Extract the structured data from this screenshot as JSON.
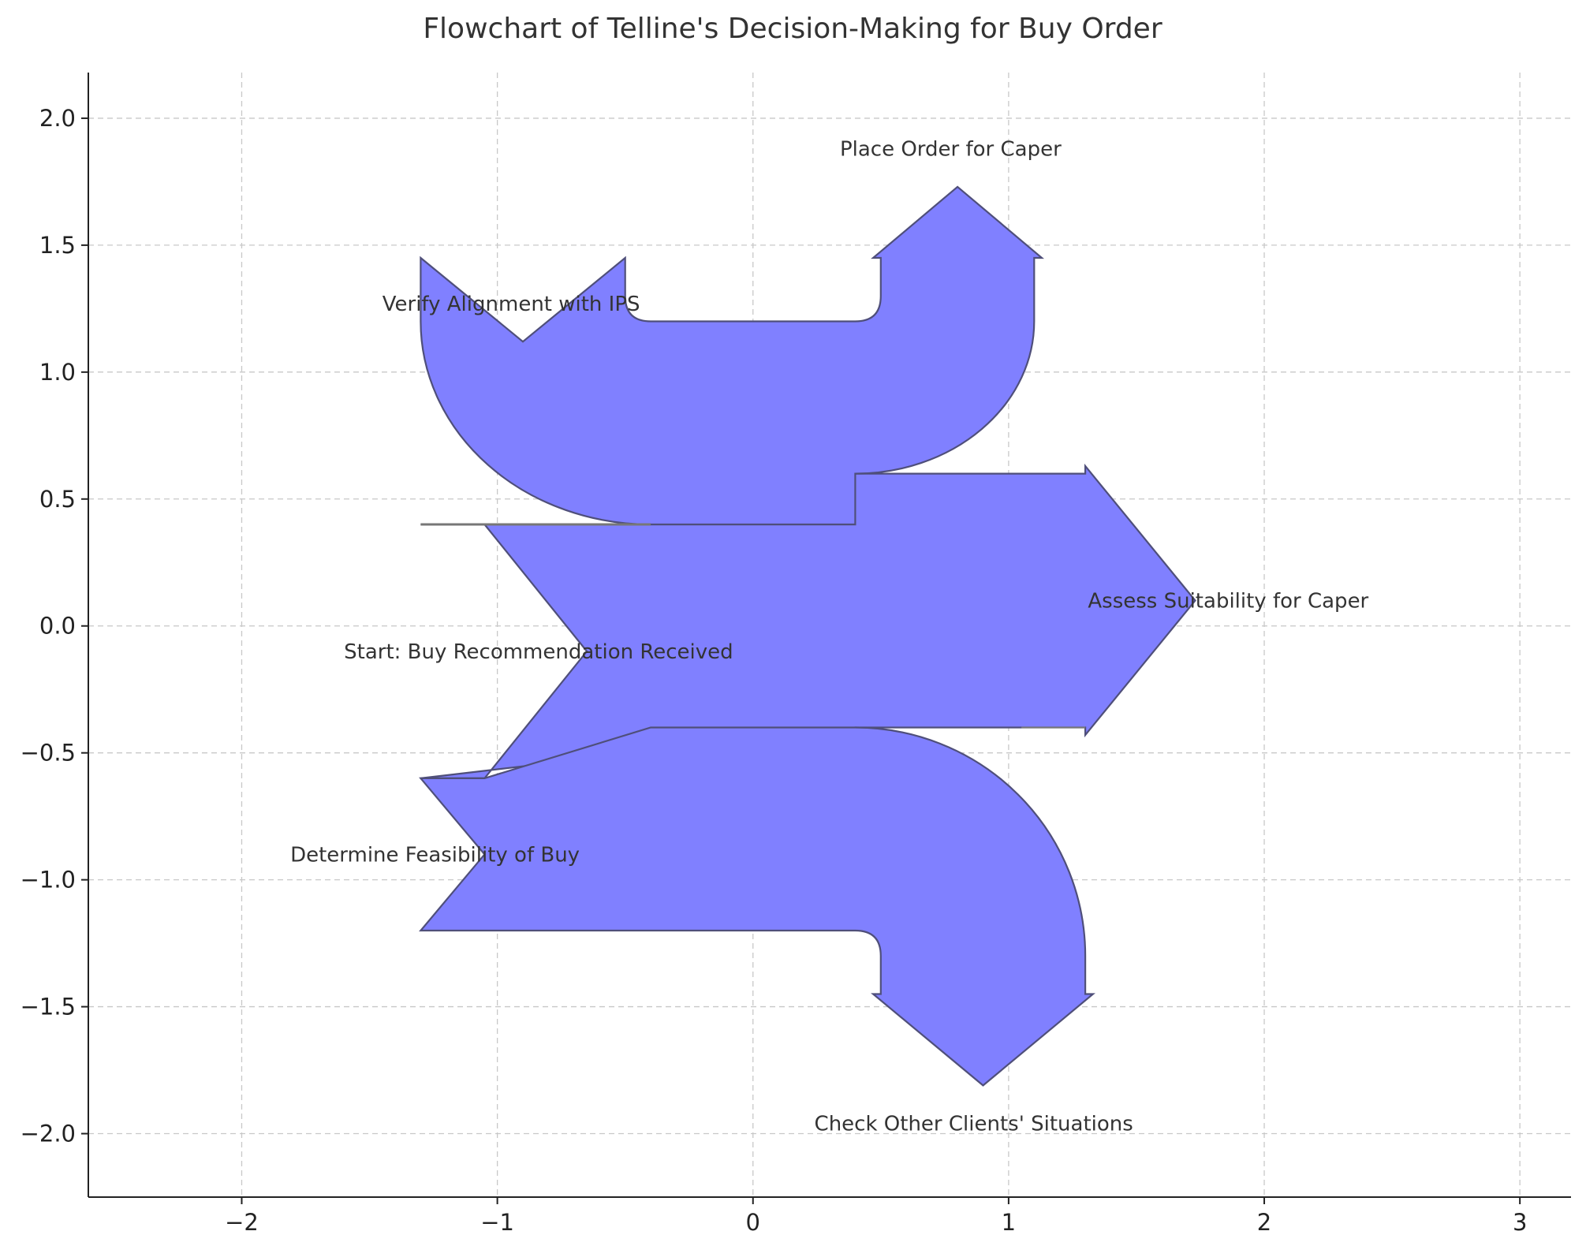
{
  "title": "Flowchart of Telline's Decision-Making for Buy Order",
  "colors": {
    "fill": "#8080ff",
    "edge": "#4f4f7a",
    "grid": "#c8c8c8",
    "text": "#333333"
  },
  "axes": {
    "xlim": [
      -2.6,
      3.2
    ],
    "ylim": [
      -2.25,
      2.18
    ],
    "x_ticks": [
      {
        "v": -2,
        "label": "−2"
      },
      {
        "v": -1,
        "label": "−1"
      },
      {
        "v": 0,
        "label": "0"
      },
      {
        "v": 1,
        "label": "1"
      },
      {
        "v": 2,
        "label": "2"
      },
      {
        "v": 3,
        "label": "3"
      }
    ],
    "y_ticks": [
      {
        "v": 2.0,
        "label": "2.0"
      },
      {
        "v": 1.5,
        "label": "1.5"
      },
      {
        "v": 1.0,
        "label": "1.0"
      },
      {
        "v": 0.5,
        "label": "0.5"
      },
      {
        "v": 0.0,
        "label": "0.0"
      },
      {
        "v": -0.5,
        "label": "−0.5"
      },
      {
        "v": -1.0,
        "label": "−1.0"
      },
      {
        "v": -1.5,
        "label": "−1.5"
      },
      {
        "v": -2.0,
        "label": "−2.0"
      }
    ],
    "grid": true
  },
  "nodes": [
    {
      "id": "start",
      "label": "Start: Buy Recommendation Received",
      "x": -1.6,
      "y": -0.1
    },
    {
      "id": "verify",
      "label": "Verify Alignment with IPS",
      "x": -1.45,
      "y": 1.27
    },
    {
      "id": "place",
      "label": "Place Order for Caper",
      "x": 0.34,
      "y": 1.88
    },
    {
      "id": "assess",
      "label": "Assess Suitability for Caper",
      "x": 1.31,
      "y": 0.1
    },
    {
      "id": "determine",
      "label": "Determine Feasibility of Buy",
      "x": -1.81,
      "y": -0.9
    },
    {
      "id": "check",
      "label": "Check Other Clients' Situations",
      "x": 0.24,
      "y": -1.96
    }
  ],
  "flows": [
    {
      "id": "flow-main-right",
      "points": [
        [
          -1.05,
          0.4
        ],
        [
          -0.65,
          -0.1
        ],
        [
          -1.05,
          -0.6
        ],
        [
          0.4,
          -0.4
        ],
        [
          1.3,
          -0.4
        ],
        [
          1.3,
          -0.43
        ],
        [
          1.73,
          0.1
        ],
        [
          1.3,
          0.63
        ],
        [
          1.3,
          0.6
        ],
        [
          0.4,
          0.6
        ],
        [
          0.4,
          0.4
        ]
      ]
    },
    {
      "id": "flow-up-left",
      "points": [
        [
          0.4,
          0.6
        ],
        [
          0.4,
          0.4
        ],
        [
          -0.4,
          0.4
        ],
        [
          -0.8,
          0.4
        ],
        [
          -1.3,
          0.4
        ],
        [
          -1.3,
          0.8
        ],
        [
          -1.3,
          1.45
        ],
        [
          -0.9,
          1.12
        ],
        [
          -0.5,
          1.45
        ],
        [
          -0.5,
          1.2
        ],
        [
          0.4,
          1.2
        ],
        [
          0.5,
          1.3
        ],
        [
          0.47,
          1.45
        ],
        [
          0.8,
          1.73
        ],
        [
          1.13,
          1.45
        ],
        [
          1.1,
          1.45
        ],
        [
          1.1,
          1.2
        ]
      ]
    },
    {
      "id": "flow-down",
      "points": [
        [
          0.4,
          -0.4
        ],
        [
          -1.05,
          -0.6
        ],
        [
          -1.3,
          -0.6
        ],
        [
          -1.05,
          -0.9
        ],
        [
          -1.3,
          -1.2
        ],
        [
          0.4,
          -1.2
        ],
        [
          0.5,
          -1.3
        ],
        [
          0.5,
          -1.45
        ],
        [
          0.47,
          -1.45
        ],
        [
          0.9,
          -1.81
        ],
        [
          1.33,
          -1.45
        ],
        [
          1.3,
          -1.45
        ],
        [
          1.3,
          -1.3
        ]
      ]
    }
  ]
}
